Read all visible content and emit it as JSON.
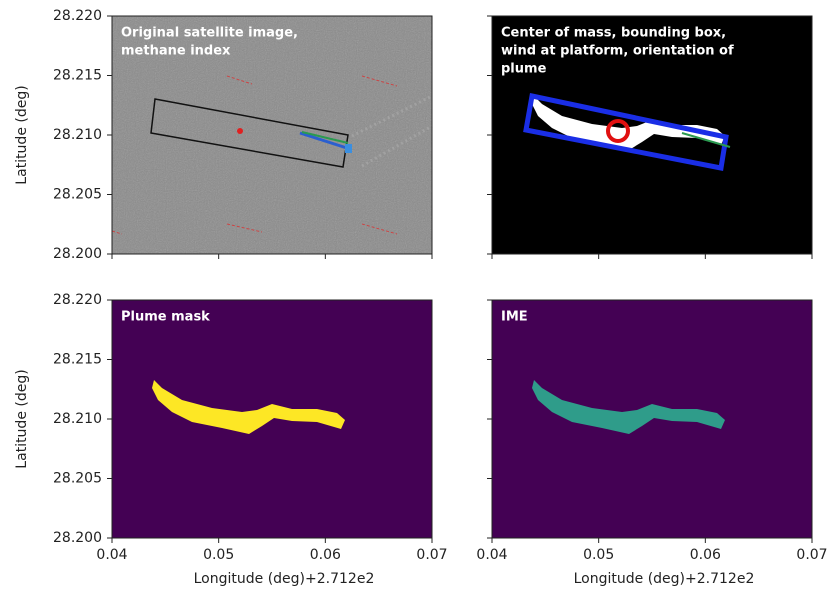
{
  "chart_data": [
    {
      "type": "image",
      "annotation": [
        "Original satellite image,",
        "methane index"
      ],
      "ylabel": "Latitude (deg)",
      "xlim": [
        0.04,
        0.07
      ],
      "ylim": [
        28.2,
        28.22
      ],
      "yticks": [
        {
          "value": 28.22,
          "label": "28.220"
        },
        28.215,
        {
          "value": 28.21,
          "label": "28.210"
        },
        28.205,
        {
          "value": 28.2,
          "label": "28.200"
        }
      ]
    },
    {
      "type": "image",
      "annotation": [
        "Center of mass, bounding box,",
        "wind at platform, orientation of",
        "plume"
      ],
      "xlim": [
        0.04,
        0.07
      ],
      "ylim": [
        28.2,
        28.22
      ]
    },
    {
      "type": "image",
      "annotation": [
        "Plume mask"
      ],
      "ylabel": "Latitude (deg)",
      "xlabel": "Longitude (deg)+2.712e2",
      "xlim": [
        0.04,
        0.07
      ],
      "ylim": [
        28.2,
        28.22
      ],
      "color": "#fde725",
      "xticks": [
        0.04,
        0.05,
        0.06,
        0.07
      ],
      "yticks": [
        {
          "value": 28.22,
          "label": "28.220"
        },
        28.215,
        {
          "value": 28.21,
          "label": "28.210"
        },
        28.205,
        {
          "value": 28.2,
          "label": "28.200"
        }
      ]
    },
    {
      "type": "image",
      "annotation": [
        "IME"
      ],
      "xlabel": "Longitude (deg)+2.712e2",
      "xlim": [
        0.04,
        0.07
      ],
      "ylim": [
        28.2,
        28.22
      ],
      "color": "#2f9c8a",
      "xticks": [
        0.04,
        0.05,
        0.06,
        0.07
      ]
    }
  ]
}
